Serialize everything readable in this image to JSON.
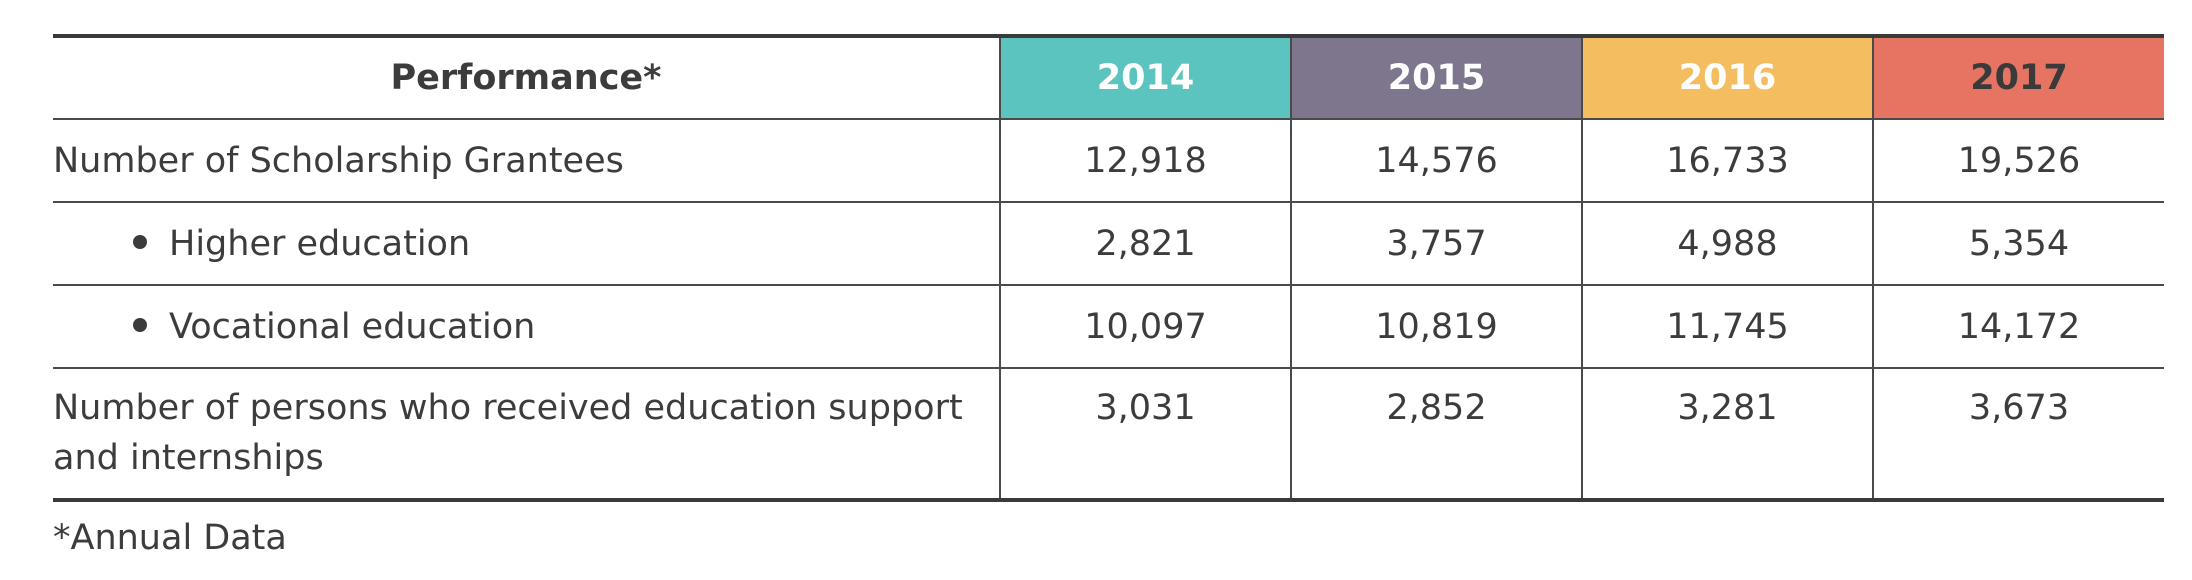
{
  "table": {
    "header": {
      "label": "Performance*",
      "years": [
        {
          "label": "2014",
          "color": "#5cc4bf"
        },
        {
          "label": "2015",
          "color": "#7e768d"
        },
        {
          "label": "2016",
          "color": "#f3bd60"
        },
        {
          "label": "2017",
          "color": "#e57462"
        }
      ]
    },
    "rows": [
      {
        "label": "Number of Scholarship Grantees",
        "values": [
          "12,918",
          "14,576",
          "16,733",
          "19,526"
        ]
      },
      {
        "label": "Higher education",
        "values": [
          "2,821",
          "3,757",
          "4,988",
          "5,354"
        ]
      },
      {
        "label": "Vocational education",
        "values": [
          "10,097",
          "10,819",
          "11,745",
          "14,172"
        ]
      },
      {
        "label_line1": "Number of persons who received education support",
        "label_line2": "and internships",
        "values": [
          "3,031",
          "2,852",
          "3,281",
          "3,673"
        ]
      }
    ]
  },
  "footnote": "*Annual Data"
}
